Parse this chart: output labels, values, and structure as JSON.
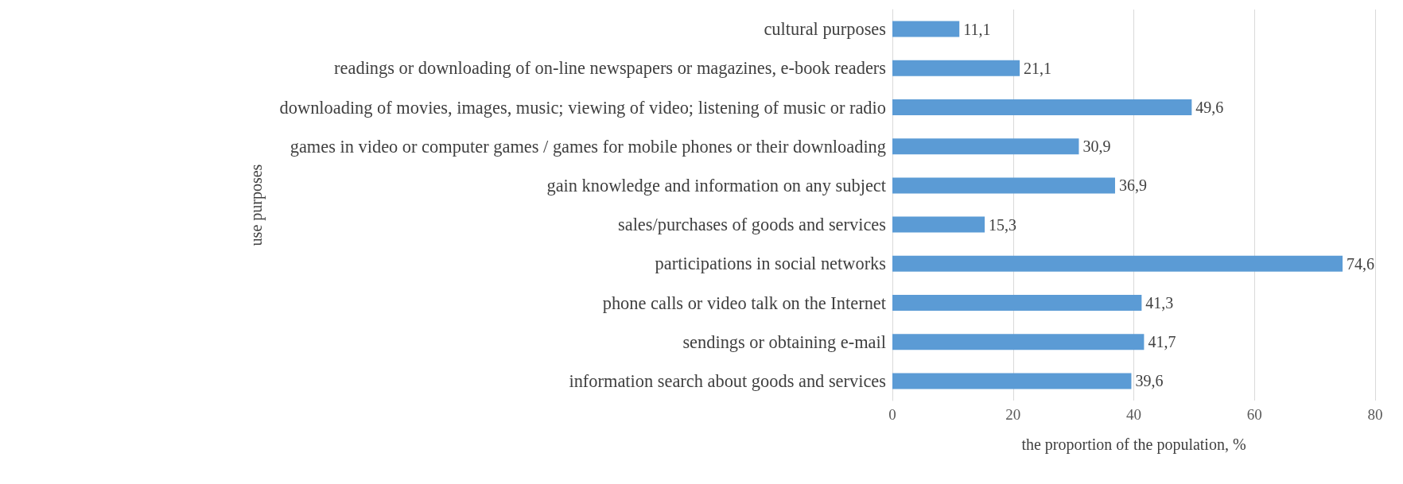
{
  "chart_data": {
    "type": "bar",
    "orientation": "horizontal",
    "xlabel": "the proportion of the population, %",
    "ylabel": "use purposes",
    "categories": [
      "cultural purposes",
      "readings or downloading of on-line newspapers or magazines, e-book readers",
      "downloading of movies, images, music; viewing of video; listening of music or radio",
      "games in video or computer games / games for mobile phones or their downloading",
      "gain knowledge and information on any subject",
      "sales/purchases of goods and services",
      "participations in social networks",
      "phone calls or video talk on the Internet",
      "sendings or obtaining e-mail",
      "information search about goods and services"
    ],
    "values": [
      11.1,
      21.1,
      49.6,
      30.9,
      36.9,
      15.3,
      74.6,
      41.3,
      41.7,
      39.6
    ],
    "value_labels": [
      "11,1",
      "21,1",
      "49,6",
      "30,9",
      "36,9",
      "15,3",
      "74,6",
      "41,3",
      "41,7",
      "39,6"
    ],
    "color": "#5b9bd5",
    "xlim": [
      0,
      80
    ],
    "xticks": [
      0,
      20,
      40,
      60,
      80
    ],
    "grid": "x"
  }
}
